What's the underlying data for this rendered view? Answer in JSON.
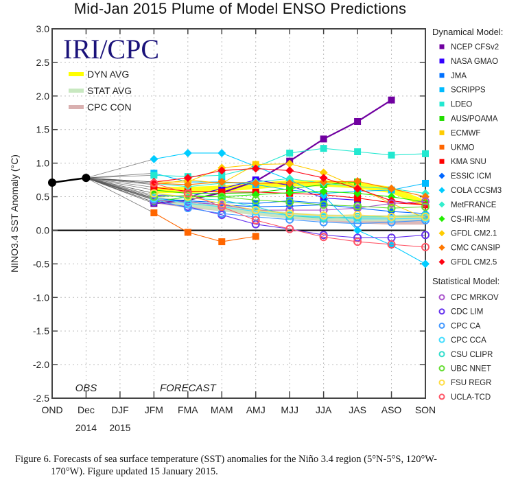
{
  "chart_data": {
    "type": "line",
    "title": "Mid-Jan 2015 Plume of Model ENSO Predictions",
    "ylabel": "NINO3.4 SST Anomaly (°C)",
    "xlabel": "",
    "ylim": [
      -2.5,
      3.0
    ],
    "yticks": [
      "3.0",
      "2.5",
      "2.0",
      "1.5",
      "1.0",
      "0.5",
      "0.0",
      "-0.5",
      "-1.0",
      "-1.5",
      "-2.0",
      "-2.5"
    ],
    "ytick_values": [
      3.0,
      2.5,
      2.0,
      1.5,
      1.0,
      0.5,
      0.0,
      -0.5,
      -1.0,
      -1.5,
      -2.0,
      -2.5
    ],
    "categories": [
      "OND",
      "Dec",
      "DJF",
      "JFM",
      "FMA",
      "MAM",
      "AMJ",
      "MJJ",
      "JJA",
      "JAS",
      "ASO",
      "SON"
    ],
    "year_labels": [
      {
        "label": "2014",
        "under": "Dec"
      },
      {
        "label": "2015",
        "under": "DJF"
      }
    ],
    "grid": true,
    "zero_line": true,
    "brand_text": "IRI/CPC",
    "annotations": [
      {
        "text": "OBS",
        "at": "Dec"
      },
      {
        "text": "FORECAST",
        "at": "FMA"
      }
    ],
    "observed": {
      "name": "OBS",
      "color": "#000000",
      "x": [
        "OND",
        "Dec"
      ],
      "values": [
        0.71,
        0.78
      ]
    },
    "forecast_x": [
      "JFM",
      "FMA",
      "MAM",
      "AMJ",
      "MJJ",
      "JJA",
      "JAS",
      "ASO",
      "SON"
    ],
    "averages": [
      {
        "name": "DYN AVG",
        "color": "#ffff00",
        "values": [
          0.6,
          0.6,
          0.62,
          0.66,
          0.7,
          0.7,
          0.67,
          0.6,
          0.4
        ]
      },
      {
        "name": "STAT AVG",
        "color": "#c8e8c0",
        "values": [
          0.46,
          0.4,
          0.33,
          0.27,
          0.22,
          0.19,
          0.18,
          0.18,
          0.2
        ]
      },
      {
        "name": "CPC CON",
        "color": "#d9b0b0",
        "values": [
          0.45,
          0.38,
          0.33,
          0.27,
          0.22,
          0.18,
          0.15,
          0.13,
          0.13
        ]
      }
    ],
    "dynamical_heading": "Dynamical Model:",
    "statistical_heading": "Statistical Model:",
    "series": [
      {
        "name": "NCEP CFSv2",
        "group": "dynamical",
        "marker": "square",
        "color": "#7000a0",
        "values": [
          0.4,
          0.45,
          0.56,
          0.73,
          1.03,
          1.36,
          1.62,
          1.94,
          null
        ]
      },
      {
        "name": "NASA GMAO",
        "group": "dynamical",
        "marker": "square",
        "color": "#3300ff",
        "values": [
          0.52,
          0.5,
          0.62,
          0.75,
          0.67,
          0.48,
          0.45,
          null,
          null
        ]
      },
      {
        "name": "JMA",
        "group": "dynamical",
        "marker": "square",
        "color": "#0070ff",
        "values": [
          0.47,
          0.44,
          0.41,
          0.4,
          0.44,
          0.4,
          null,
          null,
          null
        ]
      },
      {
        "name": "SCRIPPS",
        "group": "dynamical",
        "marker": "square",
        "color": "#00bbff",
        "values": [
          0.85,
          0.72,
          0.72,
          0.68,
          0.6,
          0.55,
          0.58,
          0.6,
          0.7
        ]
      },
      {
        "name": "LDEO",
        "group": "dynamical",
        "marker": "square",
        "color": "#22e8d0",
        "values": [
          0.82,
          0.8,
          0.82,
          0.94,
          1.15,
          1.22,
          1.17,
          1.12,
          1.14
        ]
      },
      {
        "name": "AUS/POAMA",
        "group": "dynamical",
        "marker": "square",
        "color": "#22dd00",
        "values": [
          0.6,
          0.55,
          0.55,
          0.56,
          0.62,
          0.68,
          0.72,
          null,
          null
        ]
      },
      {
        "name": "ECMWF",
        "group": "dynamical",
        "marker": "square",
        "color": "#ffcc00",
        "values": [
          0.68,
          0.75,
          0.7,
          0.98,
          null,
          null,
          null,
          null,
          null
        ]
      },
      {
        "name": "UKMO",
        "group": "dynamical",
        "marker": "square",
        "color": "#ff6600",
        "values": [
          0.26,
          -0.03,
          -0.17,
          -0.09,
          null,
          null,
          null,
          null,
          null
        ]
      },
      {
        "name": "KMA SNU",
        "group": "dynamical",
        "marker": "square",
        "color": "#ff0000",
        "values": [
          0.64,
          0.58,
          0.57,
          0.57,
          0.55,
          0.53,
          0.48,
          0.41,
          0.38
        ]
      },
      {
        "name": "ESSIC ICM",
        "group": "dynamical",
        "marker": "diamond",
        "color": "#0066ff",
        "values": [
          0.48,
          0.42,
          0.38,
          0.35,
          0.36,
          0.38,
          0.33,
          0.28,
          0.25
        ]
      },
      {
        "name": "COLA CCSM3",
        "group": "dynamical",
        "marker": "diamond",
        "color": "#00ccff",
        "values": [
          1.06,
          1.15,
          1.15,
          0.95,
          0.75,
          0.52,
          0.0,
          -0.22,
          -0.5
        ]
      },
      {
        "name": "MetFRANCE",
        "group": "dynamical",
        "marker": "diamond",
        "color": "#33eecc",
        "values": [
          0.7,
          0.65,
          0.7,
          0.72,
          0.77,
          0.7,
          0.65,
          0.62,
          0.55
        ]
      },
      {
        "name": "CS-IRI-MM",
        "group": "dynamical",
        "marker": "diamond",
        "color": "#22ee00",
        "values": [
          0.42,
          0.5,
          0.5,
          0.53,
          0.56,
          0.58,
          0.55,
          0.5,
          0.42
        ]
      },
      {
        "name": "GFDL CM2.1",
        "group": "dynamical",
        "marker": "diamond",
        "color": "#ffcc00",
        "values": [
          0.72,
          0.72,
          0.93,
          0.98,
          0.99,
          0.86,
          0.64,
          0.4,
          0.18
        ]
      },
      {
        "name": "CMC CANSIP",
        "group": "dynamical",
        "marker": "diamond",
        "color": "#ff7700",
        "values": [
          0.7,
          0.68,
          0.72,
          0.7,
          0.7,
          0.72,
          0.73,
          0.62,
          0.5
        ]
      },
      {
        "name": "GFDL CM2.5",
        "group": "dynamical",
        "marker": "diamond",
        "color": "#ff0011",
        "values": [
          0.72,
          0.78,
          0.89,
          0.92,
          0.89,
          0.78,
          0.62,
          0.44,
          0.38
        ]
      },
      {
        "name": "CPC MRKOV",
        "group": "statistical",
        "marker": "circle",
        "color": "#aa55cc",
        "values": [
          0.45,
          0.42,
          0.38,
          0.3,
          0.3,
          0.3,
          0.33,
          0.4,
          0.43
        ]
      },
      {
        "name": "CDC LIM",
        "group": "statistical",
        "marker": "circle",
        "color": "#6633ee",
        "values": [
          0.42,
          0.35,
          0.23,
          0.09,
          0.02,
          -0.07,
          -0.11,
          -0.11,
          -0.07
        ]
      },
      {
        "name": "CPC CA",
        "group": "statistical",
        "marker": "circle",
        "color": "#4499ff",
        "values": [
          0.46,
          0.33,
          0.25,
          0.2,
          0.16,
          0.12,
          0.1,
          0.12,
          0.15
        ]
      },
      {
        "name": "CPC CCA",
        "group": "statistical",
        "marker": "circle",
        "color": "#44ddff",
        "values": [
          0.48,
          0.4,
          0.35,
          0.28,
          0.22,
          0.2,
          0.17,
          0.17,
          0.18
        ]
      },
      {
        "name": "CSU CLIPR",
        "group": "statistical",
        "marker": "circle",
        "color": "#33ddcc",
        "values": [
          0.55,
          0.48,
          0.45,
          0.35,
          0.22,
          0.18,
          0.2,
          0.2,
          0.22
        ]
      },
      {
        "name": "UBC NNET",
        "group": "statistical",
        "marker": "circle",
        "color": "#66dd33",
        "values": [
          0.5,
          0.52,
          0.5,
          0.45,
          0.42,
          0.38,
          0.36,
          0.33,
          0.35
        ]
      },
      {
        "name": "FSU REGR",
        "group": "statistical",
        "marker": "circle",
        "color": "#ffdd44",
        "values": [
          0.55,
          0.5,
          0.4,
          0.3,
          0.25,
          0.22,
          0.23,
          0.2,
          0.2
        ]
      },
      {
        "name": "UCLA-TCD",
        "group": "statistical",
        "marker": "circle",
        "color": "#ff5566",
        "values": [
          0.7,
          0.55,
          0.35,
          0.15,
          0.02,
          -0.1,
          -0.17,
          -0.21,
          -0.25
        ]
      }
    ]
  },
  "caption": {
    "line1": "Figure 6. Forecasts of sea surface temperature (SST) anomalies for the Niño 3.4 region (5°N-5°S, 120°W-",
    "line2": "170°W).  Figure updated 15 January 2015."
  }
}
